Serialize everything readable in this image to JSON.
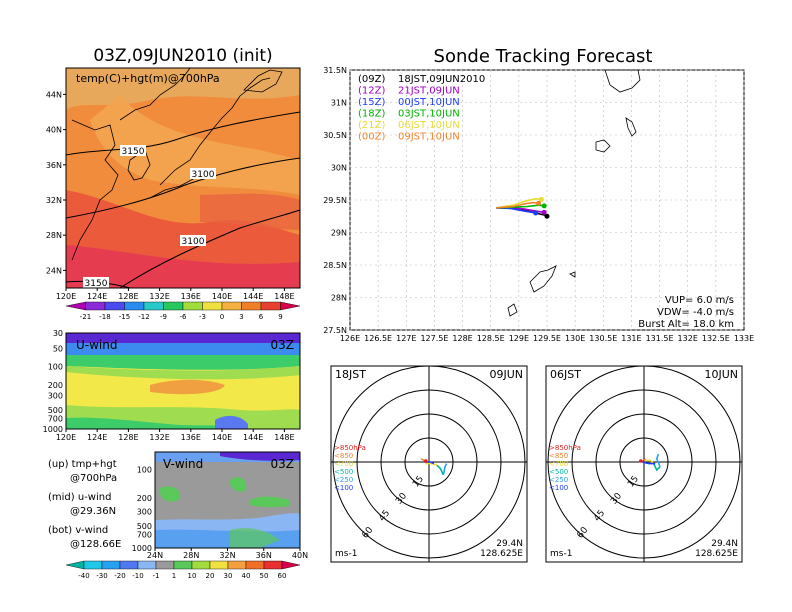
{
  "titles": {
    "left": "03Z,09JUN2010 (init)",
    "right": "Sonde Tracking Forecast"
  },
  "colors": {
    "run_09z": "#000000",
    "run_12z": "#a000c8",
    "run_15z": "#1e3cff",
    "run_18z": "#00b400",
    "run_21z": "#e6dc32",
    "run_00z": "#f08228"
  },
  "chart_data": [
    {
      "type": "heatmap",
      "name": "temp-height-map",
      "label": "temp(C)+hgt(m)@700hPa",
      "xticks": [
        "120E",
        "124E",
        "128E",
        "132E",
        "136E",
        "140E",
        "144E",
        "148E"
      ],
      "yticks": [
        "24N",
        "28N",
        "32N",
        "36N",
        "40N",
        "44N"
      ],
      "xlim": [
        120,
        150
      ],
      "ylim": [
        22,
        47
      ],
      "contour_labels": [
        "3150",
        "3100",
        "3100",
        "3150"
      ],
      "colorbar": [
        "-21",
        "-18",
        "-15",
        "-12",
        "-9",
        "-6",
        "-3",
        "0",
        "3",
        "6",
        "9"
      ]
    },
    {
      "type": "heatmap",
      "name": "u-wind-section",
      "label": "U-wind",
      "time": "03Z",
      "xticks": [
        "120E",
        "124E",
        "128E",
        "132E",
        "136E",
        "140E",
        "144E",
        "148E"
      ],
      "yticks": [
        "30",
        "50",
        "100",
        "200",
        "300",
        "500",
        "700",
        "1000"
      ]
    },
    {
      "type": "heatmap",
      "name": "v-wind-section",
      "label": "V-wind",
      "time": "03Z",
      "xticks": [
        "24N",
        "28N",
        "32N",
        "36N",
        "40N"
      ],
      "yticks": [
        "100",
        "200",
        "300",
        "500",
        "700",
        "1000"
      ],
      "colorbar": [
        "-40",
        "-30",
        "-20",
        "-10",
        "-1",
        "1",
        "10",
        "20",
        "30",
        "40",
        "50",
        "60"
      ]
    },
    {
      "type": "line",
      "name": "sonde-track-map",
      "xticks": [
        "126E",
        "126.5E",
        "127E",
        "127.5E",
        "128E",
        "128.5E",
        "129E",
        "129.5E",
        "130E",
        "130.5E",
        "131E",
        "131.5E",
        "132E",
        "132.5E",
        "133E"
      ],
      "yticks": [
        "27.5N",
        "28N",
        "28.5N",
        "29N",
        "29.5N",
        "30N",
        "30.5N",
        "31N",
        "31.5N"
      ],
      "xlim": [
        126,
        133
      ],
      "ylim": [
        27.5,
        31.5
      ],
      "legend": [
        {
          "run": "(09Z)",
          "label": "18JST,09JUN2010"
        },
        {
          "run": "(12Z)",
          "label": "21JST,09JUN"
        },
        {
          "run": "(15Z)",
          "label": "00JST,10JUN"
        },
        {
          "run": "(18Z)",
          "label": "03JST,10JUN"
        },
        {
          "run": "(21Z)",
          "label": "06JST,10JUN"
        },
        {
          "run": "(00Z)",
          "label": "09JST,10JUN"
        }
      ],
      "series": [
        {
          "run": "(09Z)",
          "points": [
            [
              128.6,
              29.38
            ],
            [
              128.9,
              29.37
            ],
            [
              129.1,
              29.34
            ],
            [
              129.3,
              29.3
            ],
            [
              129.45,
              29.27
            ],
            [
              129.5,
              29.25
            ]
          ]
        },
        {
          "run": "(12Z)",
          "points": [
            [
              128.6,
              29.38
            ],
            [
              128.9,
              29.38
            ],
            [
              129.1,
              29.36
            ],
            [
              129.3,
              29.33
            ],
            [
              129.45,
              29.31
            ]
          ]
        },
        {
          "run": "(15Z)",
          "points": [
            [
              128.6,
              29.38
            ],
            [
              128.85,
              29.37
            ],
            [
              129.1,
              29.33
            ],
            [
              129.3,
              29.3
            ]
          ]
        },
        {
          "run": "(18Z)",
          "points": [
            [
              128.6,
              29.38
            ],
            [
              128.9,
              29.39
            ],
            [
              129.15,
              29.4
            ],
            [
              129.35,
              29.42
            ],
            [
              129.45,
              29.41
            ]
          ]
        },
        {
          "run": "(21Z)",
          "points": [
            [
              128.6,
              29.38
            ],
            [
              128.9,
              29.42
            ],
            [
              129.1,
              29.48
            ],
            [
              129.3,
              29.52
            ],
            [
              129.4,
              29.51
            ]
          ]
        },
        {
          "run": "(00Z)",
          "points": [
            [
              128.6,
              29.38
            ],
            [
              128.9,
              29.4
            ],
            [
              129.1,
              29.44
            ],
            [
              129.25,
              29.46
            ],
            [
              129.35,
              29.45
            ]
          ]
        }
      ],
      "params": [
        "VUP= 6.0 m/s",
        "VDW= -4.0 m/s",
        "Burst Alt= 18.0 km"
      ]
    },
    {
      "type": "line",
      "name": "hodograph-09jun",
      "time": "18JST",
      "date": "09JUN",
      "rings": [
        "15",
        "30",
        "45",
        "60"
      ],
      "unit": "ms-1",
      "lat": "29.4N",
      "lon": "128.625E",
      "legend": [
        ">850hPa",
        "<850",
        "<700",
        "<500",
        "<250",
        "<100"
      ],
      "series": [
        {
          "layer": ">850hPa",
          "points": [
            [
              -1,
              -1
            ],
            [
              -2,
              0
            ]
          ]
        },
        {
          "layer": "<850",
          "points": [
            [
              -2,
              0
            ],
            [
              -3,
              1
            ],
            [
              -5,
              2
            ]
          ]
        },
        {
          "layer": "<700",
          "points": [
            [
              -2,
              -1
            ],
            [
              2,
              -1
            ],
            [
              5,
              -2
            ]
          ]
        },
        {
          "layer": "<500",
          "points": [
            [
              5,
              -2
            ],
            [
              7,
              -4
            ],
            [
              9,
              -8
            ]
          ]
        },
        {
          "layer": "<250",
          "points": [
            [
              9,
              -8
            ],
            [
              10,
              -3
            ],
            [
              11,
              -1
            ]
          ]
        },
        {
          "layer": "<100",
          "points": [
            [
              -3,
              0
            ],
            [
              1,
              0
            ],
            [
              3,
              -1
            ]
          ]
        }
      ]
    },
    {
      "type": "line",
      "name": "hodograph-10jun",
      "time": "06JST",
      "date": "10JUN",
      "rings": [
        "15",
        "30",
        "45",
        "60"
      ],
      "unit": "ms-1",
      "lat": "29.4N",
      "lon": "128.625E",
      "legend": [
        ">850hPa",
        "<850",
        "<700",
        "<500",
        "<250",
        "<100"
      ],
      "series": [
        {
          "layer": ">850hPa",
          "points": [
            [
              -1,
              0
            ],
            [
              0,
              1
            ]
          ]
        },
        {
          "layer": "<850",
          "points": [
            [
              0,
              1
            ],
            [
              1,
              2
            ]
          ]
        },
        {
          "layer": "<700",
          "points": [
            [
              1,
              1
            ],
            [
              4,
              1
            ],
            [
              6,
              -1
            ]
          ]
        },
        {
          "layer": "<500",
          "points": [
            [
              6,
              -1
            ],
            [
              8,
              -5
            ],
            [
              10,
              -3
            ]
          ]
        },
        {
          "layer": "<250",
          "points": [
            [
              10,
              -3
            ],
            [
              8,
              2
            ],
            [
              9,
              5
            ]
          ]
        },
        {
          "layer": "<100",
          "points": [
            [
              -1,
              0
            ],
            [
              3,
              -1
            ],
            [
              7,
              -1
            ]
          ]
        }
      ]
    }
  ],
  "annotations": {
    "up": [
      "(up) tmp+hgt",
      "@700hPa"
    ],
    "mid": [
      "(mid) u-wind",
      "@29.36N"
    ],
    "bot": [
      "(bot) v-wind",
      "@128.66E"
    ]
  }
}
